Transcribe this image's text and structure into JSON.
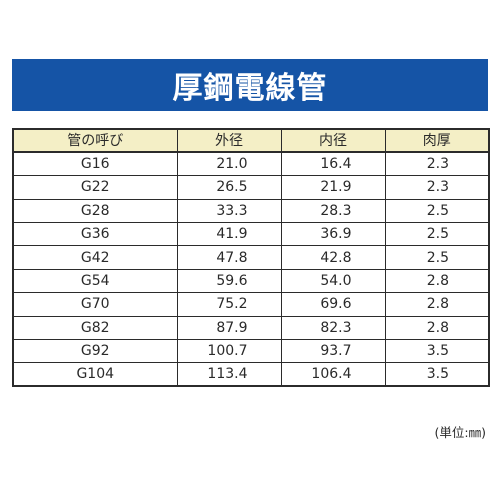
{
  "title": "厚鋼電線管",
  "table": {
    "headers": [
      "管の呼び",
      "外径",
      "内径",
      "肉厚"
    ],
    "rows": [
      {
        "name": "G16",
        "outer": "21.0",
        "inner": "16.4",
        "thickness": "2.3"
      },
      {
        "name": "G22",
        "outer": "26.5",
        "inner": "21.9",
        "thickness": "2.3"
      },
      {
        "name": "G28",
        "outer": "33.3",
        "inner": "28.3",
        "thickness": "2.5"
      },
      {
        "name": "G36",
        "outer": "41.9",
        "inner": "36.9",
        "thickness": "2.5"
      },
      {
        "name": "G42",
        "outer": "47.8",
        "inner": "42.8",
        "thickness": "2.5"
      },
      {
        "name": "G54",
        "outer": "59.6",
        "inner": "54.0",
        "thickness": "2.8"
      },
      {
        "name": "G70",
        "outer": "75.2",
        "inner": "69.6",
        "thickness": "2.8"
      },
      {
        "name": "G82",
        "outer": "87.9",
        "inner": "82.3",
        "thickness": "2.8"
      },
      {
        "name": "G92",
        "outer": "100.7",
        "inner": "93.7",
        "thickness": "3.5"
      },
      {
        "name": "G104",
        "outer": "113.4",
        "inner": "106.4",
        "thickness": "3.5"
      }
    ]
  },
  "unit_note": "(単位:㎜)",
  "colors": {
    "banner": "#1554a6",
    "header_fill": "#f4efc6",
    "border": "#2b2b2b"
  }
}
